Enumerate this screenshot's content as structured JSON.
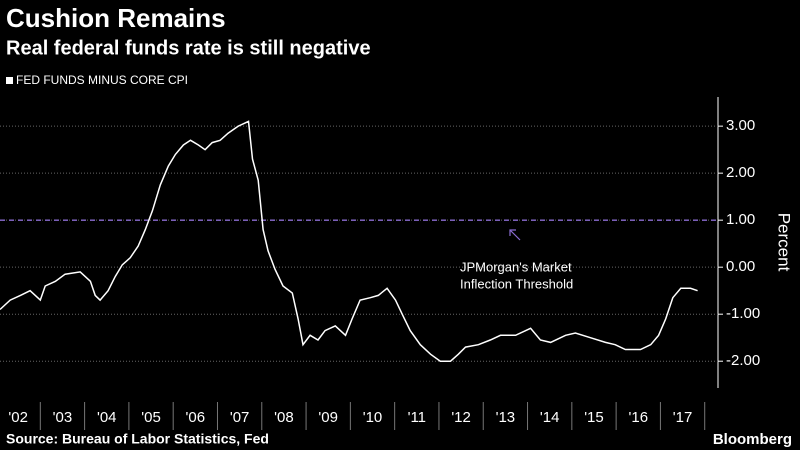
{
  "chart_data": {
    "type": "line",
    "title": "Cushion Remains",
    "subtitle": "Real federal funds rate is still negative",
    "y_label": "Percent",
    "source": "Source: Bureau of Labor Statistics, Fed",
    "brand": "Bloomberg",
    "x": [
      2002.09,
      2002.32,
      2002.55,
      2002.77,
      2003.0,
      2003.11,
      2003.34,
      2003.56,
      2003.9,
      2004.13,
      2004.24,
      2004.35,
      2004.53,
      2004.69,
      2004.85,
      2005.03,
      2005.21,
      2005.37,
      2005.53,
      2005.71,
      2005.89,
      2006.05,
      2006.23,
      2006.39,
      2006.57,
      2006.72,
      2006.88,
      2007.06,
      2007.24,
      2007.47,
      2007.7,
      2007.79,
      2007.92,
      2008.03,
      2008.14,
      2008.3,
      2008.48,
      2008.69,
      2008.82,
      2008.93,
      2009.09,
      2009.27,
      2009.43,
      2009.66,
      2009.89,
      2010.04,
      2010.22,
      2010.45,
      2010.63,
      2010.83,
      2011.02,
      2011.17,
      2011.35,
      2011.58,
      2011.81,
      2012.03,
      2012.26,
      2012.44,
      2012.6,
      2012.89,
      2013.16,
      2013.39,
      2013.73,
      2014.07,
      2014.29,
      2014.52,
      2014.86,
      2015.08,
      2015.42,
      2015.76,
      2015.98,
      2016.21,
      2016.55,
      2016.78,
      2016.96,
      2017.12,
      2017.28,
      2017.46,
      2017.68,
      2017.84
    ],
    "series": [
      {
        "name": "FED FUNDS MINUS CORE CPI",
        "color": "#ffffff",
        "values": [
          -0.9,
          -0.7,
          -0.6,
          -0.5,
          -0.7,
          -0.4,
          -0.3,
          -0.15,
          -0.1,
          -0.3,
          -0.6,
          -0.7,
          -0.5,
          -0.2,
          0.05,
          0.2,
          0.45,
          0.8,
          1.2,
          1.75,
          2.15,
          2.4,
          2.6,
          2.7,
          2.6,
          2.5,
          2.65,
          2.7,
          2.85,
          3.0,
          3.1,
          2.3,
          1.85,
          0.8,
          0.35,
          -0.05,
          -0.4,
          -0.55,
          -1.1,
          -1.65,
          -1.45,
          -1.55,
          -1.35,
          -1.25,
          -1.45,
          -1.1,
          -0.7,
          -0.65,
          -0.6,
          -0.45,
          -0.7,
          -1.0,
          -1.35,
          -1.65,
          -1.85,
          -2.0,
          -2.0,
          -1.85,
          -1.7,
          -1.65,
          -1.55,
          -1.45,
          -1.45,
          -1.3,
          -1.55,
          -1.6,
          -1.45,
          -1.4,
          -1.5,
          -1.6,
          -1.65,
          -1.75,
          -1.75,
          -1.65,
          -1.45,
          -1.1,
          -0.65,
          -0.45,
          -0.45,
          -0.5
        ]
      }
    ],
    "xlim": [
      2002.09,
      2018.3
    ],
    "xticks": [
      {
        "value": 2002.5,
        "label": "'02"
      },
      {
        "value": 2003.5,
        "label": "'03"
      },
      {
        "value": 2004.5,
        "label": "'04"
      },
      {
        "value": 2005.5,
        "label": "'05"
      },
      {
        "value": 2006.5,
        "label": "'06"
      },
      {
        "value": 2007.5,
        "label": "'07"
      },
      {
        "value": 2008.5,
        "label": "'08"
      },
      {
        "value": 2009.5,
        "label": "'09"
      },
      {
        "value": 2010.5,
        "label": "'10"
      },
      {
        "value": 2011.5,
        "label": "'11"
      },
      {
        "value": 2012.5,
        "label": "'12"
      },
      {
        "value": 2013.5,
        "label": "'13"
      },
      {
        "value": 2014.5,
        "label": "'14"
      },
      {
        "value": 2015.5,
        "label": "'15"
      },
      {
        "value": 2016.5,
        "label": "'16"
      },
      {
        "value": 2017.5,
        "label": "'17"
      }
    ],
    "ylim": [
      -2.57,
      3.62
    ],
    "yticks": [
      {
        "value": -2,
        "label": "-2.00"
      },
      {
        "value": -1,
        "label": "-1.00"
      },
      {
        "value": 0,
        "label": "0.00"
      },
      {
        "value": 1,
        "label": "1.00"
      },
      {
        "value": 2,
        "label": "2.00"
      },
      {
        "value": 3,
        "label": "3.00"
      }
    ],
    "grid": true,
    "reference_line": {
      "value": 1,
      "color": "#8a6cd1"
    },
    "annotation": [
      "JPMorgan's Market",
      "Inflection Threshold"
    ]
  }
}
